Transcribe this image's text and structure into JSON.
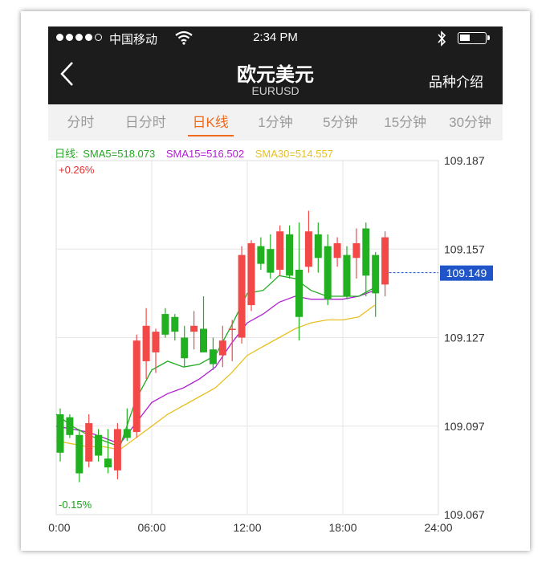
{
  "status_bar": {
    "carrier": "中国移动",
    "time": "2:34 PM"
  },
  "header": {
    "title": "欧元美元",
    "subtitle": "EURUSD",
    "intro_label": "品种介绍"
  },
  "tabs": [
    {
      "label": "分时",
      "active": false
    },
    {
      "label": "日分时",
      "active": false
    },
    {
      "label": "日K线",
      "active": true
    },
    {
      "label": "1分钟",
      "active": false
    },
    {
      "label": "5分钟",
      "active": false
    },
    {
      "label": "15分钟",
      "active": false
    },
    {
      "label": "30分钟",
      "active": false
    }
  ],
  "indicators": {
    "daily": "日线:",
    "sma5": "SMA5=518.073",
    "sma15": "SMA15=516.502",
    "sma30": "SMA30=514.557",
    "colors": {
      "daily": "#22aa22",
      "sma5": "#22aa22",
      "sma15": "#b020d0",
      "sma30": "#e8c020"
    }
  },
  "colors": {
    "up": "#f24848",
    "down": "#20b020",
    "accent": "#ef6a1c",
    "price_tag": "#1f55c8"
  },
  "chart_data": {
    "type": "candlestick",
    "y_ticks": [
      "109.187",
      "109.157",
      "109.127",
      "109.097",
      "109.067"
    ],
    "x_ticks": [
      "00:00",
      "06:00",
      "12:00",
      "18:00",
      "24:00"
    ],
    "ylim": [
      109.067,
      109.187
    ],
    "xlim_hours": [
      0,
      24
    ],
    "change_high": "+0.26%",
    "change_low": "-0.15%",
    "current_price": "109.149",
    "grid": true,
    "candles": [
      {
        "t": 0.0,
        "o": 109.101,
        "h": 109.103,
        "l": 109.085,
        "c": 109.088
      },
      {
        "t": 0.6,
        "o": 109.1,
        "h": 109.101,
        "l": 109.093,
        "c": 109.094
      },
      {
        "t": 1.2,
        "o": 109.094,
        "h": 109.096,
        "l": 109.078,
        "c": 109.081
      },
      {
        "t": 1.8,
        "o": 109.085,
        "h": 109.101,
        "l": 109.083,
        "c": 109.098
      },
      {
        "t": 2.4,
        "o": 109.094,
        "h": 109.096,
        "l": 109.085,
        "c": 109.087
      },
      {
        "t": 3.0,
        "o": 109.086,
        "h": 109.096,
        "l": 109.081,
        "c": 109.083
      },
      {
        "t": 3.6,
        "o": 109.082,
        "h": 109.098,
        "l": 109.079,
        "c": 109.096
      },
      {
        "t": 4.2,
        "o": 109.096,
        "h": 109.103,
        "l": 109.092,
        "c": 109.093
      },
      {
        "t": 4.8,
        "o": 109.095,
        "h": 109.128,
        "l": 109.093,
        "c": 109.126
      },
      {
        "t": 5.4,
        "o": 109.119,
        "h": 109.137,
        "l": 109.113,
        "c": 109.131
      },
      {
        "t": 6.0,
        "o": 109.122,
        "h": 109.13,
        "l": 109.115,
        "c": 109.129
      },
      {
        "t": 6.6,
        "o": 109.135,
        "h": 109.137,
        "l": 109.127,
        "c": 109.128
      },
      {
        "t": 7.2,
        "o": 109.134,
        "h": 109.135,
        "l": 109.126,
        "c": 109.129
      },
      {
        "t": 7.8,
        "o": 109.127,
        "h": 109.131,
        "l": 109.117,
        "c": 109.12
      },
      {
        "t": 8.4,
        "o": 109.129,
        "h": 109.136,
        "l": 109.123,
        "c": 109.131
      },
      {
        "t": 9.0,
        "o": 109.13,
        "h": 109.141,
        "l": 109.122,
        "c": 109.122
      },
      {
        "t": 9.6,
        "o": 109.123,
        "h": 109.127,
        "l": 109.116,
        "c": 109.118
      },
      {
        "t": 10.2,
        "o": 109.121,
        "h": 109.131,
        "l": 109.117,
        "c": 109.126
      },
      {
        "t": 10.8,
        "o": 109.13,
        "h": 109.133,
        "l": 109.119,
        "c": 109.13
      },
      {
        "t": 11.4,
        "o": 109.127,
        "h": 109.158,
        "l": 109.125,
        "c": 109.155
      },
      {
        "t": 12.0,
        "o": 109.138,
        "h": 109.16,
        "l": 109.136,
        "c": 109.159
      },
      {
        "t": 12.6,
        "o": 109.158,
        "h": 109.161,
        "l": 109.15,
        "c": 109.152
      },
      {
        "t": 13.2,
        "o": 109.157,
        "h": 109.162,
        "l": 109.147,
        "c": 109.149
      },
      {
        "t": 13.8,
        "o": 109.15,
        "h": 109.165,
        "l": 109.148,
        "c": 109.163
      },
      {
        "t": 14.4,
        "o": 109.162,
        "h": 109.165,
        "l": 109.147,
        "c": 109.148
      },
      {
        "t": 15.0,
        "o": 109.15,
        "h": 109.166,
        "l": 109.126,
        "c": 109.134
      },
      {
        "t": 15.6,
        "o": 109.151,
        "h": 109.17,
        "l": 109.149,
        "c": 109.163
      },
      {
        "t": 16.2,
        "o": 109.162,
        "h": 109.166,
        "l": 109.149,
        "c": 109.154
      },
      {
        "t": 16.8,
        "o": 109.158,
        "h": 109.162,
        "l": 109.138,
        "c": 109.14
      },
      {
        "t": 17.4,
        "o": 109.154,
        "h": 109.161,
        "l": 109.151,
        "c": 109.159
      },
      {
        "t": 18.0,
        "o": 109.155,
        "h": 109.158,
        "l": 109.14,
        "c": 109.141
      },
      {
        "t": 18.6,
        "o": 109.154,
        "h": 109.164,
        "l": 109.147,
        "c": 109.159
      },
      {
        "t": 19.2,
        "o": 109.164,
        "h": 109.166,
        "l": 109.141,
        "c": 109.148
      },
      {
        "t": 19.8,
        "o": 109.155,
        "h": 109.156,
        "l": 109.134,
        "c": 109.142
      },
      {
        "t": 20.4,
        "o": 109.145,
        "h": 109.163,
        "l": 109.141,
        "c": 109.161
      }
    ],
    "sma5": [
      [
        0,
        109.101
      ],
      [
        1,
        109.097
      ],
      [
        2,
        109.094
      ],
      [
        3,
        109.092
      ],
      [
        4,
        109.09
      ],
      [
        5,
        109.106
      ],
      [
        6,
        109.116
      ],
      [
        7,
        109.119
      ],
      [
        8,
        109.117
      ],
      [
        9,
        109.118
      ],
      [
        10,
        109.121
      ],
      [
        11,
        109.131
      ],
      [
        12,
        109.142
      ],
      [
        13,
        109.143
      ],
      [
        14,
        109.148
      ],
      [
        15,
        109.147
      ],
      [
        16,
        109.143
      ],
      [
        17,
        109.141
      ],
      [
        18,
        109.141
      ],
      [
        19,
        109.141
      ],
      [
        20,
        109.144
      ]
    ],
    "sma15": [
      [
        0,
        109.097
      ],
      [
        1,
        109.096
      ],
      [
        2,
        109.095
      ],
      [
        3,
        109.093
      ],
      [
        4,
        109.091
      ],
      [
        5,
        109.098
      ],
      [
        6,
        109.105
      ],
      [
        7,
        109.108
      ],
      [
        8,
        109.11
      ],
      [
        9,
        109.113
      ],
      [
        10,
        109.117
      ],
      [
        11,
        109.125
      ],
      [
        12,
        109.132
      ],
      [
        13,
        109.135
      ],
      [
        14,
        109.139
      ],
      [
        15,
        109.141
      ],
      [
        16,
        109.14
      ],
      [
        17,
        109.14
      ],
      [
        18,
        109.14
      ],
      [
        19,
        109.141
      ],
      [
        20,
        109.143
      ]
    ],
    "sma30": [
      [
        0,
        109.092
      ],
      [
        1,
        109.091
      ],
      [
        2,
        109.09
      ],
      [
        3,
        109.09
      ],
      [
        4,
        109.089
      ],
      [
        5,
        109.093
      ],
      [
        6,
        109.097
      ],
      [
        7,
        109.101
      ],
      [
        8,
        109.104
      ],
      [
        9,
        109.107
      ],
      [
        10,
        109.11
      ],
      [
        11,
        109.115
      ],
      [
        12,
        109.121
      ],
      [
        13,
        109.124
      ],
      [
        14,
        109.127
      ],
      [
        15,
        109.13
      ],
      [
        16,
        109.132
      ],
      [
        17,
        109.133
      ],
      [
        18,
        109.133
      ],
      [
        19,
        109.134
      ],
      [
        20,
        109.138
      ]
    ]
  }
}
